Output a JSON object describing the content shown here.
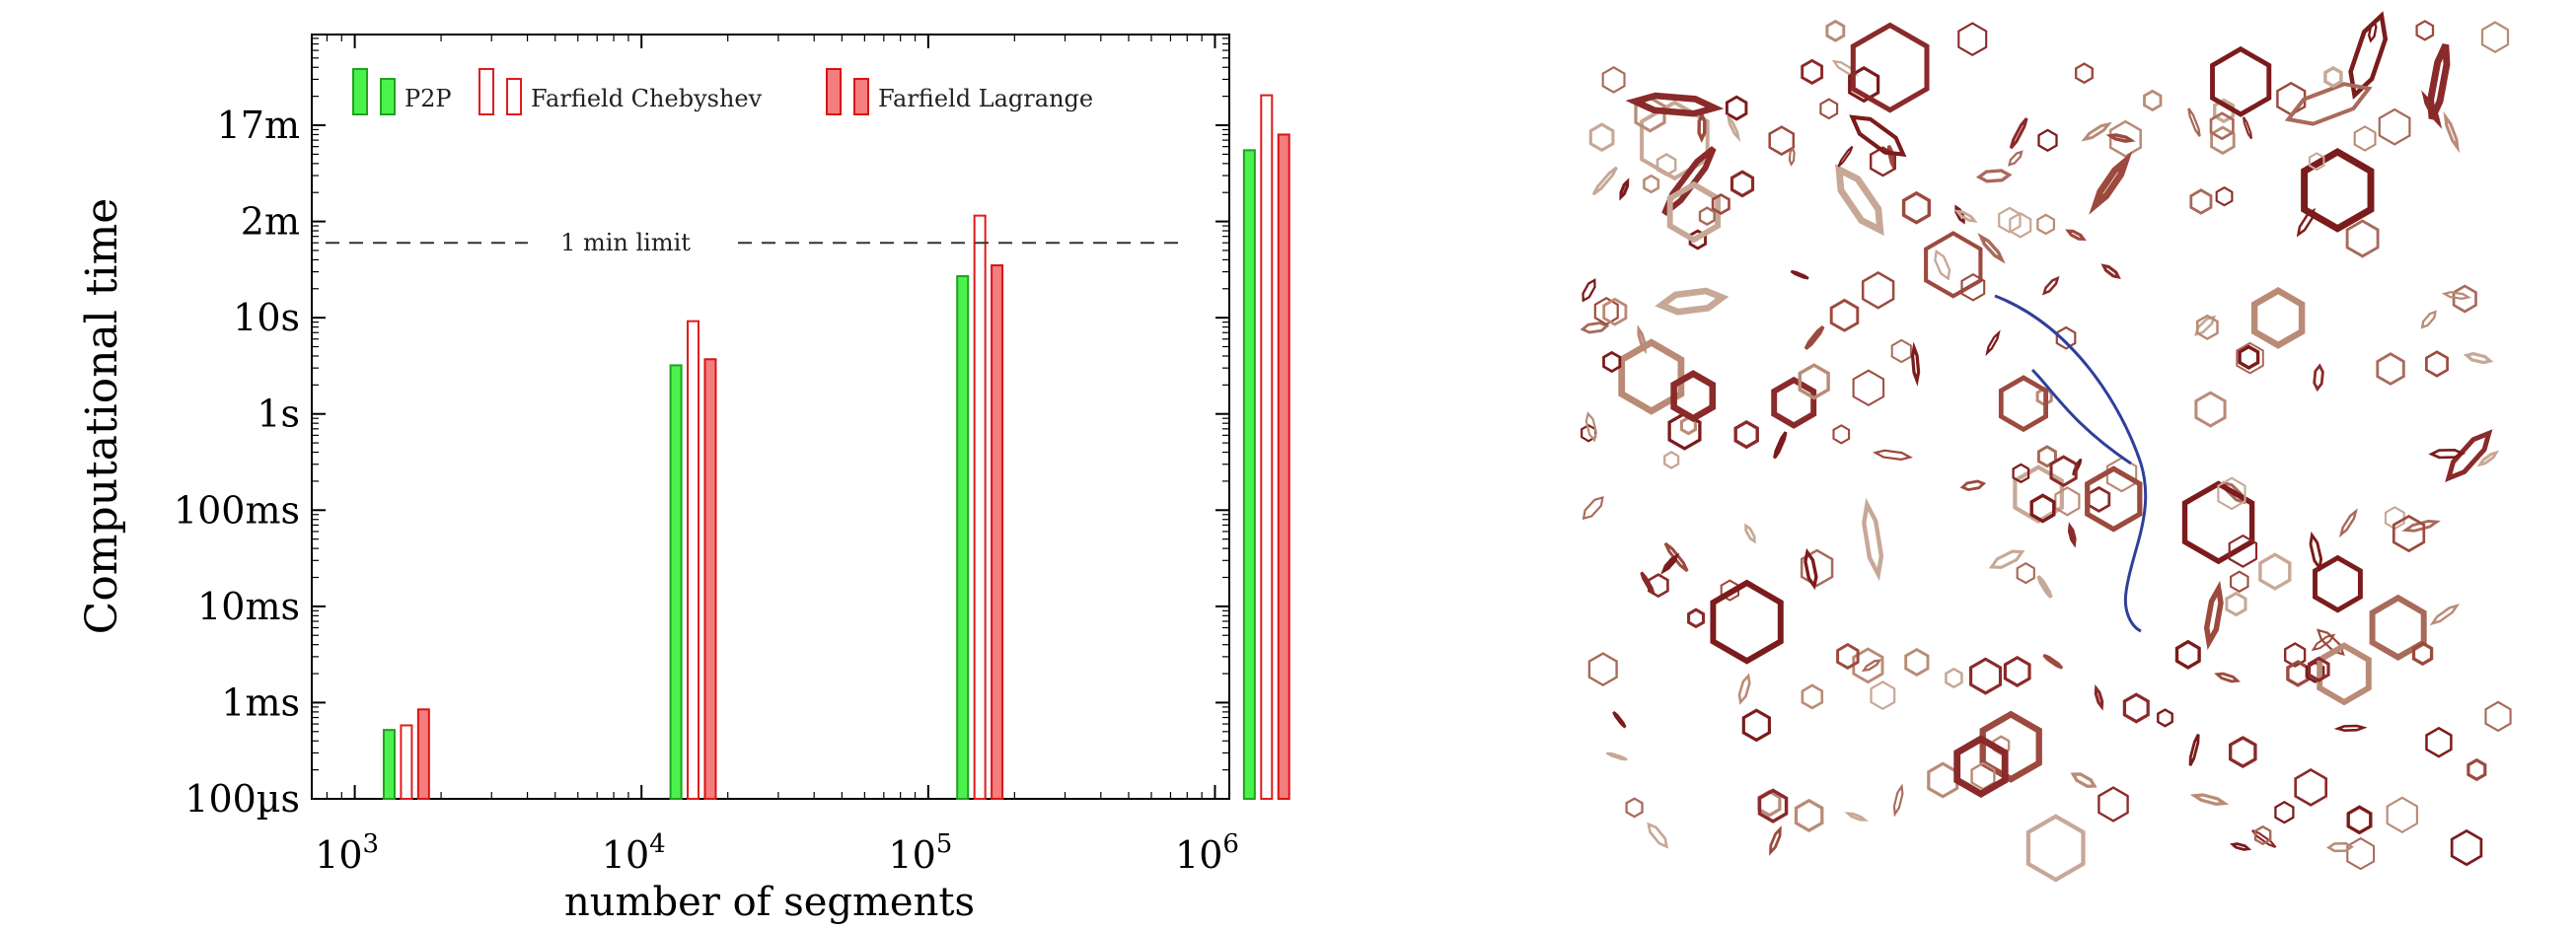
{
  "chart_data": {
    "type": "bar",
    "log_scale_x": true,
    "log_scale_y": true,
    "xlabel": "number of segments",
    "ylabel": "Computational time",
    "x_tick_labels": [
      "10",
      "10",
      "10",
      "10"
    ],
    "x_tick_exponents": [
      "3",
      "4",
      "5",
      "6"
    ],
    "y_tick_labels": [
      "100µs",
      "1ms",
      "10ms",
      "100ms",
      "1s",
      "10s",
      "2m",
      "17m"
    ],
    "y_tick_values_seconds": [
      0.0001,
      0.001,
      0.01,
      0.1,
      1,
      10,
      100,
      1000
    ],
    "grid": false,
    "legend_placement": "top-left",
    "limit_line": {
      "label": "1 min limit",
      "value_seconds": 60,
      "style": "dashed"
    },
    "categories": [
      1000,
      10000,
      100000,
      1000000
    ],
    "series": [
      {
        "name": "P2P",
        "style": "solid-green",
        "color": "#4cf24c",
        "edge": "#21a021",
        "values": [
          0.00052,
          3.2,
          27,
          550
        ]
      },
      {
        "name": "Farfield Chebyshev",
        "style": "outline-red",
        "color": "#ffffff",
        "edge": "#e01b1b",
        "values": [
          0.00058,
          9.2,
          115,
          2050
        ]
      },
      {
        "name": "Farfield Lagrange",
        "style": "solid-red",
        "color": "#f47d7d",
        "edge": "#d81414",
        "values": [
          0.00085,
          3.7,
          35,
          800
        ]
      }
    ]
  },
  "right_panel": {
    "description_icon": "dislocation-loops-rendering",
    "ring_colors": [
      "#7b1b1b",
      "#9c4a3e",
      "#b98b76",
      "#c7a896",
      "#8a2a2a",
      "#a86a5a"
    ],
    "curve_color": "#2f3f9a"
  }
}
